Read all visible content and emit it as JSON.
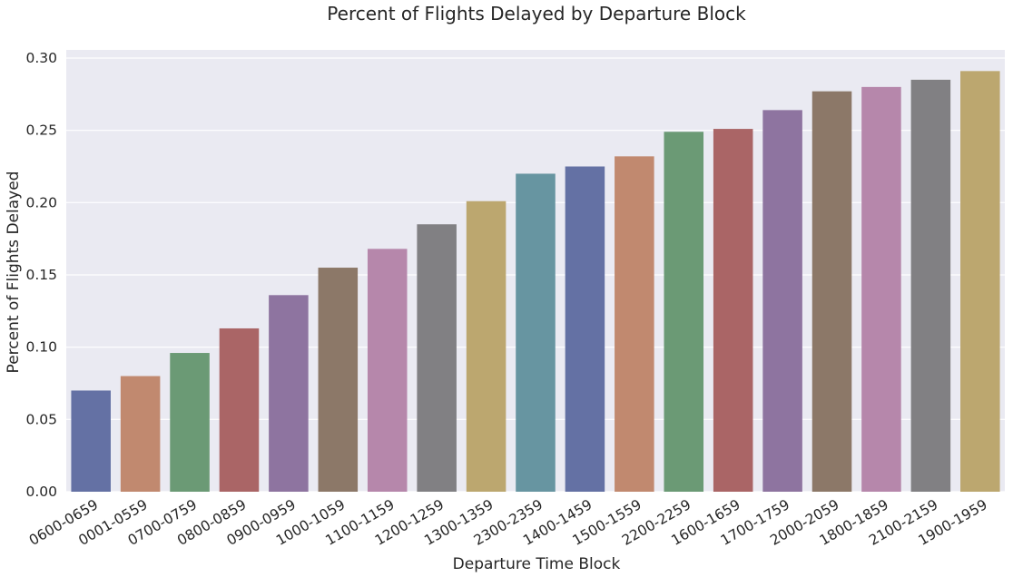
{
  "chart_data": {
    "type": "bar",
    "title": "Percent of Flights Delayed by Departure Block",
    "xlabel": "Departure Time Block",
    "ylabel": "Percent of Flights Delayed",
    "categories": [
      "0600-0659",
      "0001-0559",
      "0700-0759",
      "0800-0859",
      "0900-0959",
      "1000-1059",
      "1100-1159",
      "1200-1259",
      "1300-1359",
      "2300-2359",
      "1400-1459",
      "1500-1559",
      "2200-2259",
      "1600-1659",
      "1700-1759",
      "2000-2059",
      "1800-1859",
      "2100-2159",
      "1900-1959"
    ],
    "values": [
      0.07,
      0.08,
      0.096,
      0.113,
      0.136,
      0.155,
      0.168,
      0.185,
      0.201,
      0.22,
      0.225,
      0.232,
      0.249,
      0.251,
      0.264,
      0.277,
      0.28,
      0.285,
      0.291
    ],
    "colors": [
      "#6471a4",
      "#c1896f",
      "#6b9a75",
      "#aa6566",
      "#8e74a0",
      "#8c7868",
      "#b687ab",
      "#818083",
      "#bca76f",
      "#6795a1"
    ],
    "ylim": [
      0,
      0.3
    ],
    "yticks": [
      "0.00",
      "0.05",
      "0.10",
      "0.15",
      "0.20",
      "0.25",
      "0.30"
    ],
    "ytick_values": [
      0,
      0.05,
      0.1,
      0.15,
      0.2,
      0.25,
      0.3
    ],
    "grid": true,
    "background": "#eaeaf2",
    "gridcolor": "#ffffff"
  }
}
